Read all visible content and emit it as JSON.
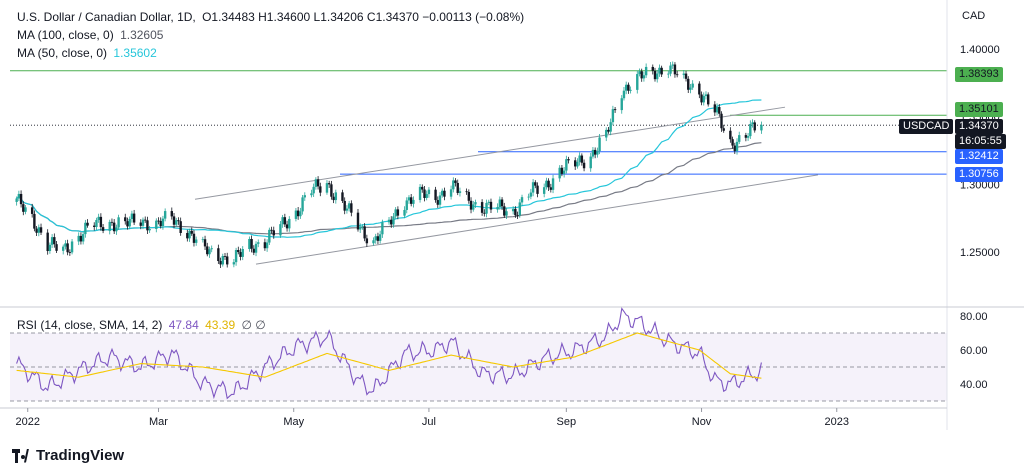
{
  "legend": {
    "symbol": "U.S. Dollar / Canadian Dollar, 1D,",
    "ohlc": "O1.34483  H1.34600  L1.34206  C1.34370  −0.00113 (−0.08%)",
    "ma100_label": "MA (100, close, 0)",
    "ma100_value": "1.32605",
    "ma50_label": "MA (50, close, 0)",
    "ma50_value": "1.35602",
    "rsi_label": "RSI (14, close, SMA, 14, 2)",
    "rsi_value": "47.84",
    "rsi_sma_value": "43.39",
    "rsi_extra": "∅ ∅"
  },
  "price_axis": {
    "currency": "CAD",
    "ticks": [
      "1.40000",
      "1.35000",
      "1.30000",
      "1.25000"
    ]
  },
  "price_tags": {
    "level_1": "1.38393",
    "level_2": "1.35101",
    "level_3": "1.32412",
    "level_4": "1.30756",
    "symbol": "USDCAD",
    "last_price": "1.34370",
    "countdown": "16:05:55"
  },
  "rsi_axis": {
    "ticks": [
      "80.00",
      "60.00",
      "40.00"
    ]
  },
  "time_axis": {
    "ticks": [
      "2022",
      "Mar",
      "May",
      "Jul",
      "Sep",
      "Nov",
      "2023"
    ]
  },
  "brand": "TradingView",
  "colors": {
    "up": "#26a69a",
    "down": "#131722",
    "ma50": "#26c6da",
    "ma100": "#787b86",
    "rsi": "#7e57c2",
    "rsi_sma": "#f5c800",
    "resistance": "#4caf50",
    "support": "#2962ff",
    "channel": "#9598a1"
  },
  "chart_data": [
    {
      "type": "candlestick",
      "title": "U.S. Dollar / Canadian Dollar, 1D",
      "ylabel": "CAD",
      "ylim": [
        1.22,
        1.42
      ],
      "x_ticks": [
        "2022",
        "Mar",
        "May",
        "Jul",
        "Sep",
        "Nov",
        "2023"
      ],
      "horizontal_levels": [
        1.38393,
        1.35101,
        1.32412,
        1.30756
      ],
      "last_close": 1.3437,
      "close_path": [
        {
          "date": "2021-12-27",
          "close": 1.287
        },
        {
          "date": "2022-01-03",
          "close": 1.276
        },
        {
          "date": "2022-01-10",
          "close": 1.255
        },
        {
          "date": "2022-01-17",
          "close": 1.251
        },
        {
          "date": "2022-01-24",
          "close": 1.262
        },
        {
          "date": "2022-01-31",
          "close": 1.27
        },
        {
          "date": "2022-02-07",
          "close": 1.272
        },
        {
          "date": "2022-02-14",
          "close": 1.27
        },
        {
          "date": "2022-02-21",
          "close": 1.274
        },
        {
          "date": "2022-02-28",
          "close": 1.27
        },
        {
          "date": "2022-03-07",
          "close": 1.275
        },
        {
          "date": "2022-03-14",
          "close": 1.266
        },
        {
          "date": "2022-03-21",
          "close": 1.252
        },
        {
          "date": "2022-03-28",
          "close": 1.248
        },
        {
          "date": "2022-04-04",
          "close": 1.243
        },
        {
          "date": "2022-04-11",
          "close": 1.255
        },
        {
          "date": "2022-04-18",
          "close": 1.258
        },
        {
          "date": "2022-04-25",
          "close": 1.268
        },
        {
          "date": "2022-05-02",
          "close": 1.28
        },
        {
          "date": "2022-05-09",
          "close": 1.295
        },
        {
          "date": "2022-05-16",
          "close": 1.301
        },
        {
          "date": "2022-05-23",
          "close": 1.285
        },
        {
          "date": "2022-05-30",
          "close": 1.27
        },
        {
          "date": "2022-06-06",
          "close": 1.258
        },
        {
          "date": "2022-06-13",
          "close": 1.27
        },
        {
          "date": "2022-06-20",
          "close": 1.288
        },
        {
          "date": "2022-06-27",
          "close": 1.292
        },
        {
          "date": "2022-07-04",
          "close": 1.29
        },
        {
          "date": "2022-07-11",
          "close": 1.3
        },
        {
          "date": "2022-07-18",
          "close": 1.288
        },
        {
          "date": "2022-07-25",
          "close": 1.284
        },
        {
          "date": "2022-08-01",
          "close": 1.282
        },
        {
          "date": "2022-08-08",
          "close": 1.28
        },
        {
          "date": "2022-08-15",
          "close": 1.293
        },
        {
          "date": "2022-08-22",
          "close": 1.298
        },
        {
          "date": "2022-08-29",
          "close": 1.31
        },
        {
          "date": "2022-09-05",
          "close": 1.315
        },
        {
          "date": "2022-09-12",
          "close": 1.322
        },
        {
          "date": "2022-09-19",
          "close": 1.335
        },
        {
          "date": "2022-09-26",
          "close": 1.37
        },
        {
          "date": "2022-10-03",
          "close": 1.378
        },
        {
          "date": "2022-10-10",
          "close": 1.382
        },
        {
          "date": "2022-10-17",
          "close": 1.388
        },
        {
          "date": "2022-10-24",
          "close": 1.375
        },
        {
          "date": "2022-10-31",
          "close": 1.37
        },
        {
          "date": "2022-11-07",
          "close": 1.354
        },
        {
          "date": "2022-11-14",
          "close": 1.33
        },
        {
          "date": "2022-11-21",
          "close": 1.337
        },
        {
          "date": "2022-11-28",
          "close": 1.344
        }
      ],
      "series": [
        {
          "name": "MA (100, close, 0)",
          "last": 1.32605
        },
        {
          "name": "MA (50, close, 0)",
          "last": 1.35602
        }
      ]
    },
    {
      "type": "line",
      "title": "RSI (14, close, SMA, 14, 2)",
      "ylim": [
        22,
        86
      ],
      "y_ticks": [
        80,
        60,
        40
      ],
      "bands": [
        70,
        50,
        30
      ],
      "series": [
        {
          "name": "RSI",
          "last": 47.84,
          "points": [
            {
              "date": "2021-12-27",
              "value": 52
            },
            {
              "date": "2022-01-10",
              "value": 38
            },
            {
              "date": "2022-01-24",
              "value": 48
            },
            {
              "date": "2022-02-07",
              "value": 56
            },
            {
              "date": "2022-02-21",
              "value": 50
            },
            {
              "date": "2022-03-07",
              "value": 58
            },
            {
              "date": "2022-03-21",
              "value": 40
            },
            {
              "date": "2022-04-04",
              "value": 35
            },
            {
              "date": "2022-04-18",
              "value": 50
            },
            {
              "date": "2022-05-02",
              "value": 62
            },
            {
              "date": "2022-05-16",
              "value": 68
            },
            {
              "date": "2022-05-30",
              "value": 42
            },
            {
              "date": "2022-06-06",
              "value": 36
            },
            {
              "date": "2022-06-20",
              "value": 58
            },
            {
              "date": "2022-07-04",
              "value": 60
            },
            {
              "date": "2022-07-11",
              "value": 65
            },
            {
              "date": "2022-07-25",
              "value": 46
            },
            {
              "date": "2022-08-08",
              "value": 45
            },
            {
              "date": "2022-08-22",
              "value": 55
            },
            {
              "date": "2022-09-05",
              "value": 60
            },
            {
              "date": "2022-09-19",
              "value": 68
            },
            {
              "date": "2022-09-26",
              "value": 80
            },
            {
              "date": "2022-10-03",
              "value": 77
            },
            {
              "date": "2022-10-17",
              "value": 65
            },
            {
              "date": "2022-10-31",
              "value": 58
            },
            {
              "date": "2022-11-07",
              "value": 42
            },
            {
              "date": "2022-11-14",
              "value": 40
            },
            {
              "date": "2022-11-28",
              "value": 47.84
            }
          ]
        },
        {
          "name": "SMA",
          "last": 43.39,
          "points": [
            {
              "date": "2021-12-27",
              "value": 48
            },
            {
              "date": "2022-01-24",
              "value": 44
            },
            {
              "date": "2022-02-21",
              "value": 52
            },
            {
              "date": "2022-03-21",
              "value": 50
            },
            {
              "date": "2022-04-18",
              "value": 44
            },
            {
              "date": "2022-05-16",
              "value": 58
            },
            {
              "date": "2022-06-13",
              "value": 48
            },
            {
              "date": "2022-07-11",
              "value": 57
            },
            {
              "date": "2022-08-08",
              "value": 50
            },
            {
              "date": "2022-09-05",
              "value": 56
            },
            {
              "date": "2022-10-03",
              "value": 70
            },
            {
              "date": "2022-10-31",
              "value": 60
            },
            {
              "date": "2022-11-14",
              "value": 46
            },
            {
              "date": "2022-11-28",
              "value": 43.39
            }
          ]
        }
      ]
    }
  ]
}
